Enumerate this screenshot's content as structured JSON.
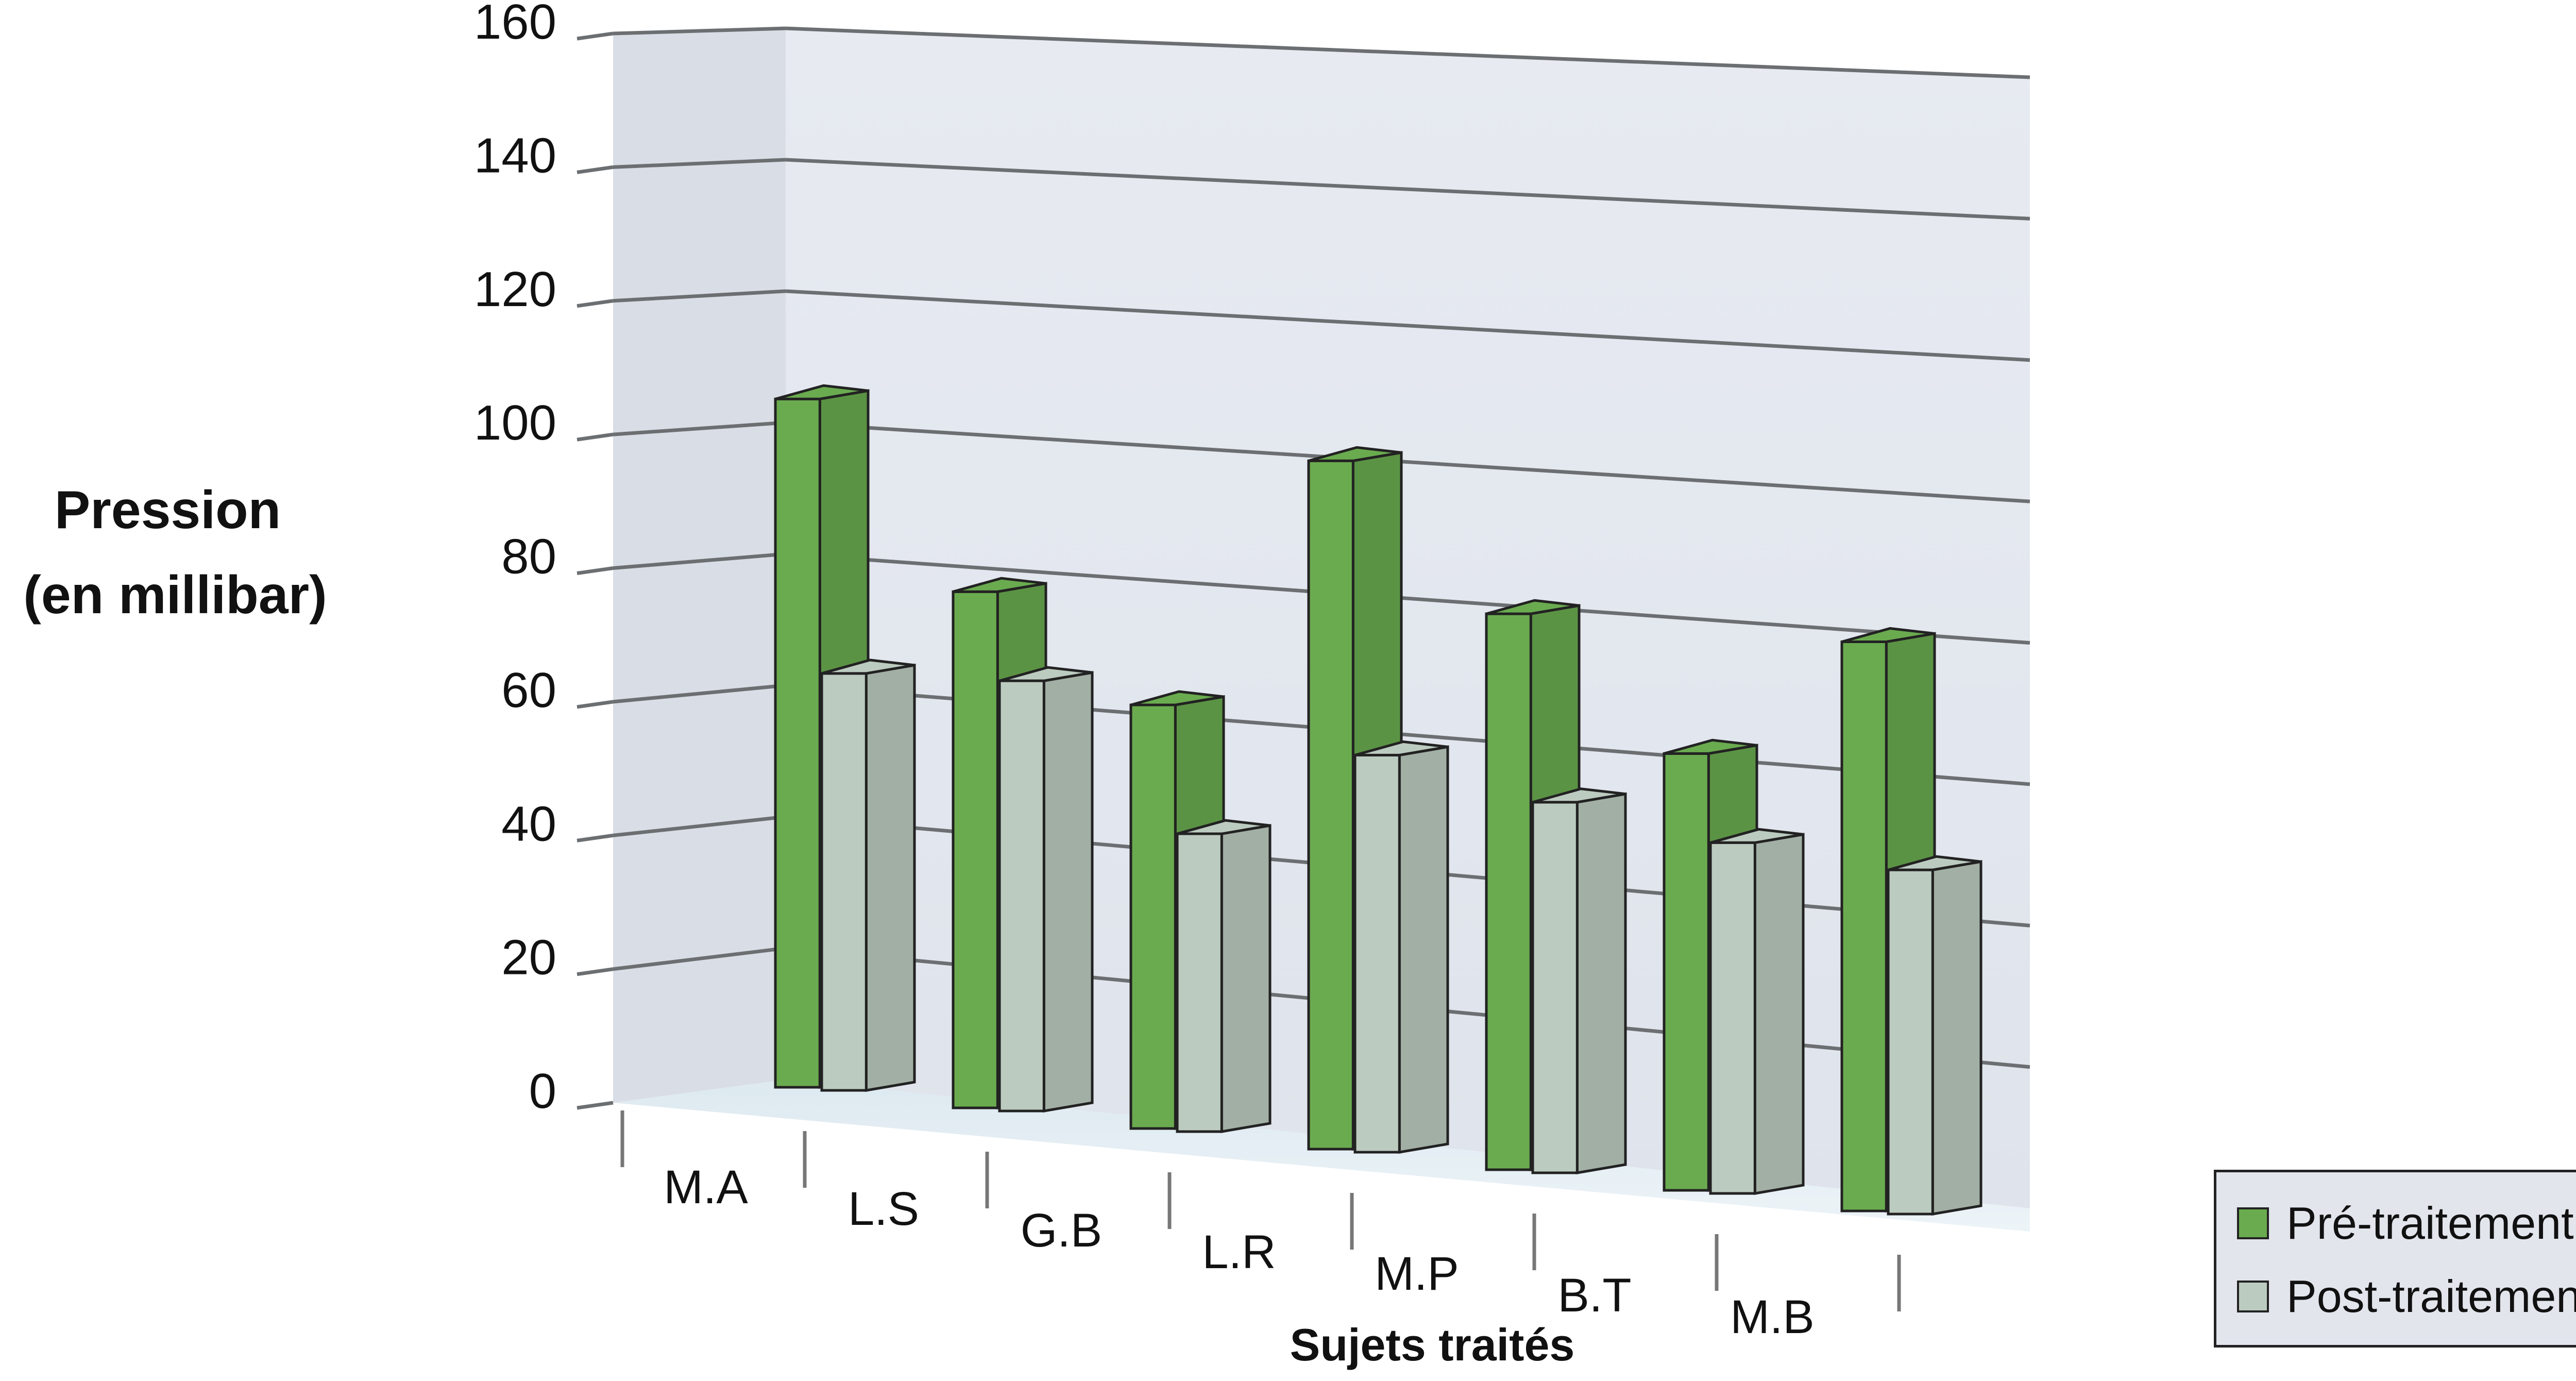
{
  "chart_data": {
    "type": "bar",
    "title": "",
    "xlabel": "Sujets traités",
    "ylabel_lines": [
      "Pression",
      "(en millibar)"
    ],
    "ylim": [
      0,
      160
    ],
    "yticks": [
      0,
      20,
      40,
      60,
      80,
      100,
      120,
      140,
      160
    ],
    "categories": [
      "M.A",
      "L.S",
      "G.B",
      "L.R",
      "M.P",
      "B.T",
      "M.B"
    ],
    "series": [
      {
        "name": "Pré-traitement",
        "color": "#6aab4f",
        "values": [
          104,
          78,
          64,
          104,
          84,
          66,
          86
        ]
      },
      {
        "name": "Post-traitement",
        "color": "#bccbc0",
        "values": [
          63,
          65,
          45,
          60,
          56,
          53,
          52
        ]
      }
    ],
    "grid": true,
    "legend_position": "bottom-right",
    "style": "3d"
  }
}
